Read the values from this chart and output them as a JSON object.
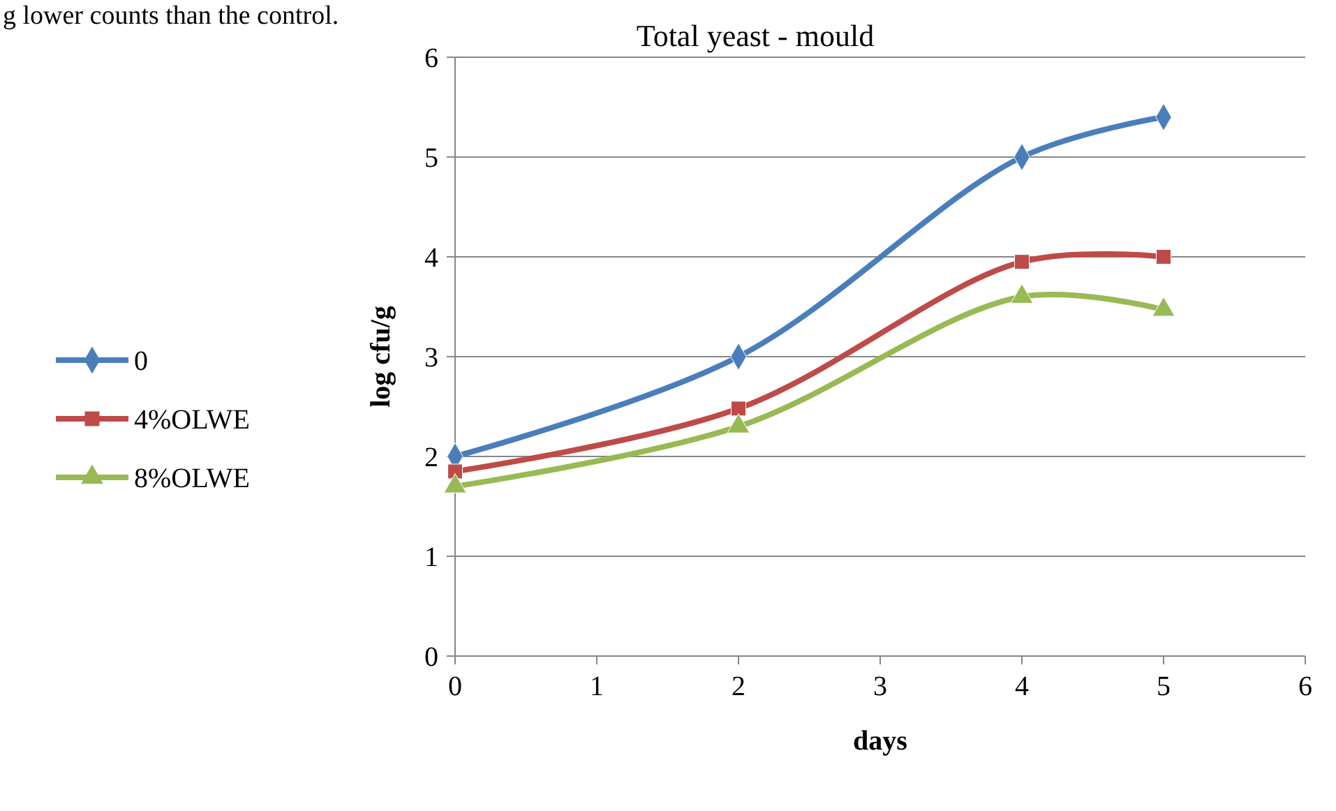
{
  "chart_data": {
    "type": "line",
    "title": "Total yeast - mould",
    "xlabel": "days",
    "ylabel": "log cfu/g",
    "annotations": [
      "g lower counts than the control."
    ],
    "xlim": [
      0,
      6
    ],
    "xticks": [
      0,
      1,
      2,
      3,
      4,
      5,
      6
    ],
    "ylim": [
      0,
      6
    ],
    "yticks": [
      0,
      1,
      2,
      3,
      4,
      5,
      6
    ],
    "grid": "y",
    "legend": "left",
    "line_style": "solid",
    "series": [
      {
        "name": "0",
        "color": "#4a7ebb",
        "marker": "diamond",
        "x": [
          0,
          2,
          4,
          5
        ],
        "values": [
          2,
          3,
          5,
          5.4
        ]
      },
      {
        "name": "4%OLWE",
        "color": "#be4b48",
        "marker": "square",
        "x": [
          0,
          2,
          4,
          5
        ],
        "values": [
          1.85,
          2.48,
          3.95,
          4.0
        ]
      },
      {
        "name": "8%OLWE",
        "color": "#98b954",
        "marker": "triangle",
        "x": [
          0,
          2,
          4,
          5
        ],
        "values": [
          1.7,
          2.3,
          3.6,
          3.47
        ]
      }
    ]
  }
}
